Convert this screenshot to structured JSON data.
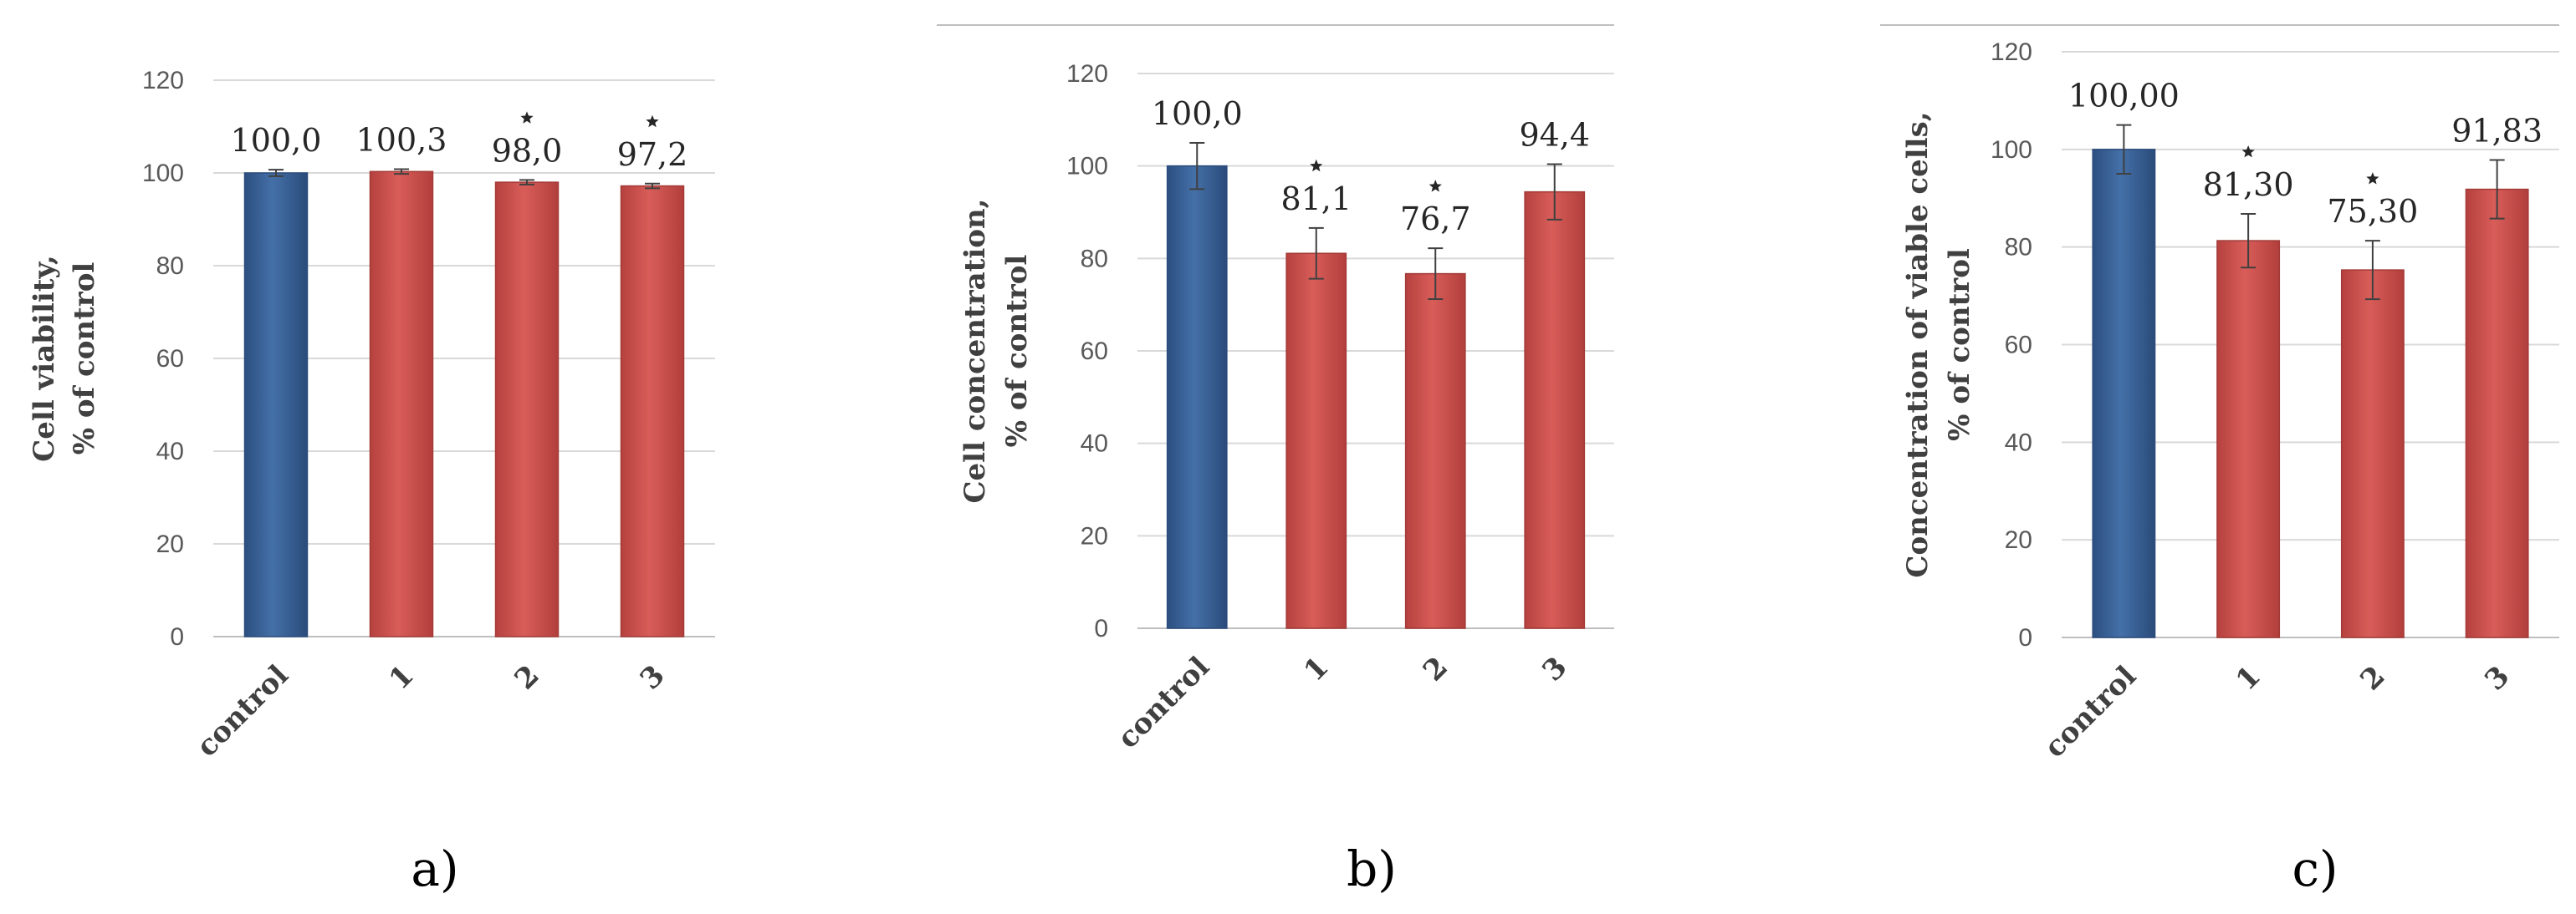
{
  "chart_data": [
    {
      "type": "bar",
      "panel_label": "a)",
      "ylabel_line1": "Cell viability,",
      "ylabel_line2": "% of control",
      "categories": [
        "control",
        "1",
        "2",
        "3"
      ],
      "values": [
        100.0,
        100.3,
        98.0,
        97.2
      ],
      "value_labels": [
        "100,0",
        "100,3",
        "98,0",
        "97,2"
      ],
      "errors": [
        0.7,
        0.5,
        0.5,
        0.5
      ],
      "significant": [
        false,
        false,
        true,
        true
      ],
      "bar_colors": [
        "#3a6298",
        "#c9504d",
        "#c9504d",
        "#c9504d"
      ],
      "ylim": [
        0,
        120
      ],
      "yticks": [
        0,
        20,
        40,
        60,
        80,
        100,
        120
      ],
      "grid": true
    },
    {
      "type": "bar",
      "panel_label": "b)",
      "ylabel_line1": "Cell concentration,",
      "ylabel_line2": "% of control",
      "categories": [
        "control",
        "1",
        "2",
        "3"
      ],
      "values": [
        100.0,
        81.1,
        76.7,
        94.4
      ],
      "value_labels": [
        "100,0",
        "81,1",
        "76,7",
        "94,4"
      ],
      "errors": [
        5,
        5.5,
        5.5,
        6
      ],
      "significant": [
        false,
        true,
        true,
        false
      ],
      "bar_colors": [
        "#3a6298",
        "#c9504d",
        "#c9504d",
        "#c9504d"
      ],
      "ylim": [
        0,
        120
      ],
      "yticks": [
        0,
        20,
        40,
        60,
        80,
        100,
        120
      ],
      "grid": true
    },
    {
      "type": "bar",
      "panel_label": "c)",
      "ylabel_line1": "Concentration of viable cells,",
      "ylabel_line2": "% of control",
      "categories": [
        "control",
        "1",
        "2",
        "3"
      ],
      "values": [
        100.0,
        81.3,
        75.3,
        91.83
      ],
      "value_labels": [
        "100,00",
        "81,30",
        "75,30",
        "91,83"
      ],
      "errors": [
        5,
        5.5,
        6,
        6
      ],
      "significant": [
        false,
        true,
        true,
        false
      ],
      "bar_colors": [
        "#3a6298",
        "#c9504d",
        "#c9504d",
        "#c9504d"
      ],
      "ylim": [
        0,
        120
      ],
      "yticks": [
        0,
        20,
        40,
        60,
        80,
        100,
        120
      ],
      "grid": true
    }
  ]
}
